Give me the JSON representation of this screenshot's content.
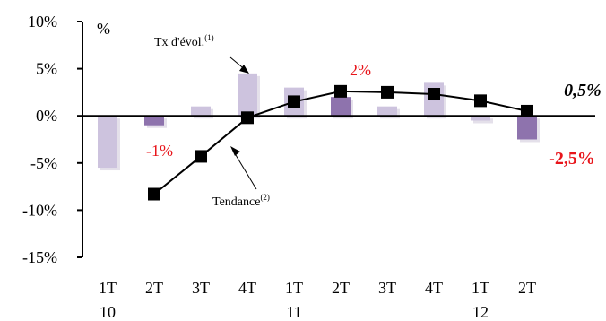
{
  "chart_data": {
    "type": "bar",
    "unit_label": "%",
    "ylim": [
      -15,
      10
    ],
    "yticks": [
      -15,
      -10,
      -5,
      0,
      5,
      10
    ],
    "ytick_labels": [
      "-15%",
      "-10%",
      "-5%",
      "0%",
      "5%",
      "10%"
    ],
    "categories": [
      "1T",
      "2T",
      "3T",
      "4T",
      "1T",
      "2T",
      "3T",
      "4T",
      "1T",
      "2T"
    ],
    "year_labels": [
      {
        "index": 0,
        "label": "10"
      },
      {
        "index": 4,
        "label": "11"
      },
      {
        "index": 8,
        "label": "12"
      }
    ],
    "series": [
      {
        "name": "Tx d'évol.(1)",
        "kind": "bar",
        "values": [
          -5.5,
          -1.0,
          1.0,
          4.5,
          3.0,
          2.0,
          1.0,
          3.5,
          -0.5,
          -2.5
        ],
        "colors": [
          "#cdc3de",
          "#8e73ad",
          "#cdc3de",
          "#cdc3de",
          "#cdc3de",
          "#8e73ad",
          "#cdc3de",
          "#cdc3de",
          "#cdc3de",
          "#8e73ad"
        ]
      },
      {
        "name": "Tendance(2)",
        "kind": "line",
        "color": "#000000",
        "values": [
          null,
          -8.3,
          -4.3,
          -0.2,
          1.5,
          2.6,
          2.5,
          2.3,
          1.6,
          0.5
        ]
      }
    ],
    "labels": {
      "bar_series": {
        "main": "Tx d'évol.",
        "sup": "(1)"
      },
      "line_series": {
        "main": "Tendance",
        "sup": "(2)"
      }
    },
    "annotations": [
      {
        "text": "-1%",
        "color": "#e8151b"
      },
      {
        "text": "2%",
        "color": "#e8151b"
      },
      {
        "text": "0,5%",
        "color": "#000000"
      },
      {
        "text": "-2,5%",
        "color": "#e8151b"
      }
    ],
    "grid": false,
    "colors": {
      "light_bar": "#cdc3de",
      "dark_bar": "#8e73ad",
      "highlight_red": "#e8151b",
      "line": "#000000"
    }
  }
}
